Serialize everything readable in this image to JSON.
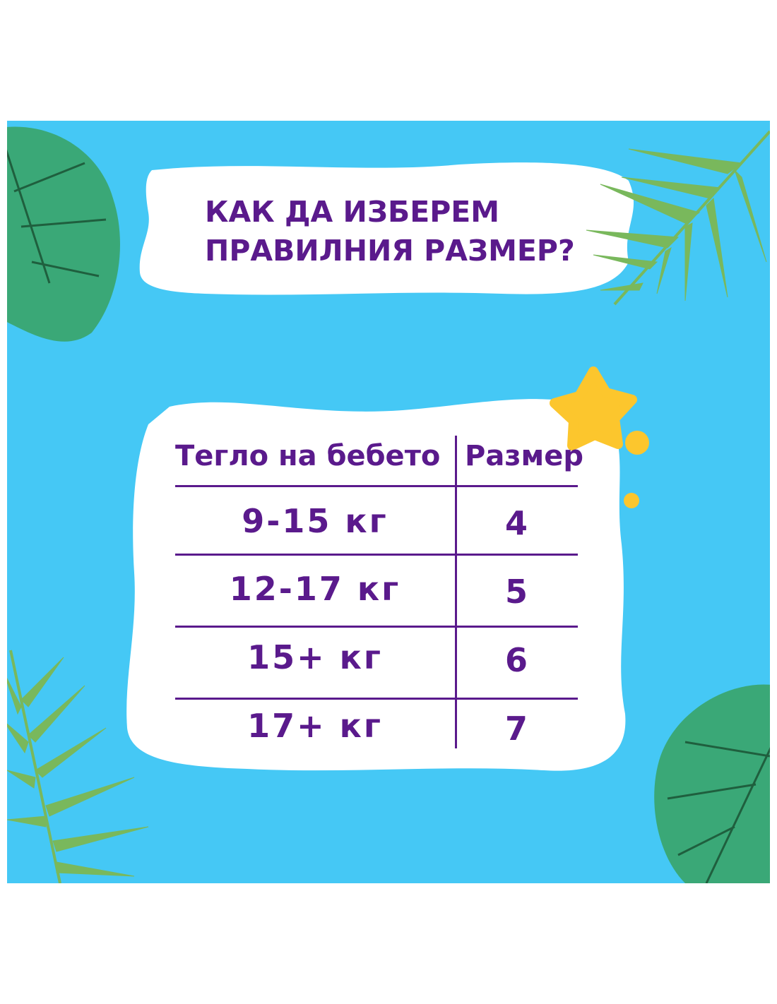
{
  "title": {
    "line1": "КАК ДА ИЗБЕРЕМ",
    "line2": "ПРАВИЛНИЯ РАЗМЕР?"
  },
  "table": {
    "headers": [
      "Тегло на бебето",
      "Размер"
    ],
    "rows": [
      {
        "weight": "9-15 кг",
        "size": "4"
      },
      {
        "weight": "12-17 кг",
        "size": "5"
      },
      {
        "weight": "15+ кг",
        "size": "6"
      },
      {
        "weight": "17+ кг",
        "size": "7"
      }
    ]
  },
  "colors": {
    "background": "#45c8f5",
    "text": "#5a1a8c",
    "star": "#fcc62d",
    "monstera": "#3aa877",
    "palm": "#79b85c"
  }
}
